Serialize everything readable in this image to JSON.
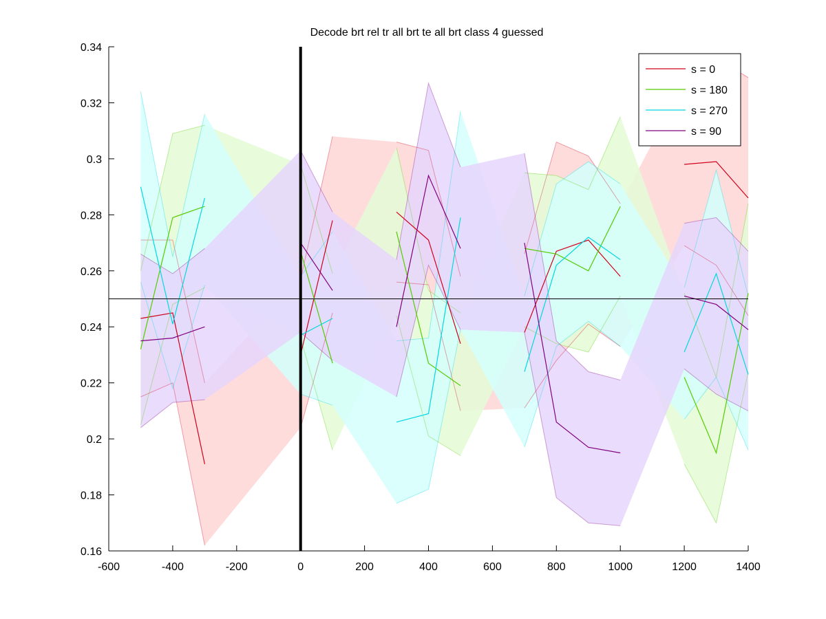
{
  "chart_data": {
    "type": "line",
    "title": "Decode brt rel tr all brt te all brt class 4 guessed",
    "xlabel": "",
    "ylabel": "",
    "xlim": [
      -600,
      1400
    ],
    "ylim": [
      0.16,
      0.34
    ],
    "xticks": [
      -600,
      -400,
      -200,
      0,
      200,
      400,
      600,
      800,
      1000,
      1200,
      1400
    ],
    "yticks": [
      0.16,
      0.18,
      0.2,
      0.22,
      0.24,
      0.26,
      0.28,
      0.3,
      0.32,
      0.34
    ],
    "xtick_labels": [
      "-600",
      "-400",
      "-200",
      "0",
      "200",
      "400",
      "600",
      "800",
      "1000",
      "1200",
      "1400"
    ],
    "ytick_labels": [
      "0.16",
      "0.18",
      "0.2",
      "0.22",
      "0.24",
      "0.26",
      "0.28",
      "0.3",
      "0.32",
      "0.34"
    ],
    "grid": false,
    "legend_position": "top-right",
    "reference_lines": {
      "horizontal_y": 0.25,
      "vertical_x": 0
    },
    "series": [
      {
        "name": "s = 0",
        "color": "#d0001a",
        "band_color": "#ffd6d6",
        "x": [
          -500,
          -400,
          -300,
          0,
          100,
          300,
          400,
          500,
          700,
          800,
          900,
          1000,
          1200,
          1300,
          1400
        ],
        "y": [
          0.243,
          0.245,
          0.191,
          0.23,
          0.278,
          0.281,
          0.271,
          0.234,
          0.238,
          0.267,
          0.271,
          0.258,
          0.298,
          0.299,
          0.286
        ],
        "lower": [
          0.215,
          0.22,
          0.162,
          0.204,
          0.245,
          0.256,
          0.255,
          0.21,
          0.211,
          0.228,
          0.241,
          0.233,
          0.269,
          0.262,
          0.244
        ],
        "upper": [
          0.271,
          0.271,
          0.22,
          0.257,
          0.308,
          0.306,
          0.303,
          0.258,
          0.266,
          0.306,
          0.301,
          0.284,
          0.327,
          0.336,
          0.329
        ]
      },
      {
        "name": "s = 180",
        "color": "#55cc00",
        "band_color": "#e4fcd6",
        "x": [
          -500,
          -400,
          -300,
          0,
          100,
          300,
          400,
          500,
          700,
          800,
          900,
          1000,
          1200,
          1300,
          1400
        ],
        "y": [
          0.232,
          0.279,
          0.283,
          0.267,
          0.227,
          0.274,
          0.227,
          0.219,
          0.268,
          0.266,
          0.26,
          0.283,
          0.222,
          0.195,
          0.252
        ],
        "lower": [
          0.205,
          0.248,
          0.254,
          0.236,
          0.196,
          0.244,
          0.201,
          0.194,
          0.24,
          0.234,
          0.231,
          0.251,
          0.191,
          0.17,
          0.224
        ],
        "upper": [
          0.26,
          0.309,
          0.312,
          0.298,
          0.259,
          0.304,
          0.253,
          0.245,
          0.295,
          0.294,
          0.289,
          0.315,
          0.252,
          0.222,
          0.284
        ]
      },
      {
        "name": "s = 270",
        "color": "#00d8e0",
        "band_color": "#d4fffd",
        "x": [
          -500,
          -400,
          -300,
          0,
          100,
          300,
          400,
          500,
          700,
          800,
          900,
          1000,
          1200,
          1300,
          1400
        ],
        "y": [
          0.29,
          0.241,
          0.286,
          0.237,
          0.243,
          0.206,
          0.209,
          0.279,
          0.224,
          0.262,
          0.272,
          0.264,
          0.231,
          0.259,
          0.223
        ],
        "lower": [
          0.256,
          0.218,
          0.255,
          0.216,
          0.212,
          0.177,
          0.182,
          0.239,
          0.197,
          0.233,
          0.242,
          0.233,
          0.207,
          0.222,
          0.196
        ],
        "upper": [
          0.324,
          0.265,
          0.316,
          0.258,
          0.274,
          0.235,
          0.236,
          0.317,
          0.251,
          0.291,
          0.299,
          0.291,
          0.254,
          0.296,
          0.251
        ]
      },
      {
        "name": "s = 90",
        "color": "#800080",
        "band_color": "#e6d6fd",
        "x": [
          -500,
          -400,
          -300,
          0,
          100,
          300,
          400,
          500,
          700,
          800,
          900,
          1000,
          1200,
          1300,
          1400
        ],
        "y": [
          0.235,
          0.236,
          0.24,
          0.27,
          0.253,
          0.24,
          0.294,
          0.268,
          0.27,
          0.206,
          0.197,
          0.195,
          0.251,
          0.248,
          0.239
        ],
        "lower": [
          0.204,
          0.213,
          0.214,
          0.238,
          0.228,
          0.215,
          0.262,
          0.239,
          0.238,
          0.179,
          0.17,
          0.169,
          0.225,
          0.216,
          0.21
        ],
        "upper": [
          0.266,
          0.259,
          0.268,
          0.303,
          0.281,
          0.264,
          0.327,
          0.297,
          0.302,
          0.235,
          0.224,
          0.221,
          0.277,
          0.279,
          0.267
        ]
      }
    ]
  }
}
